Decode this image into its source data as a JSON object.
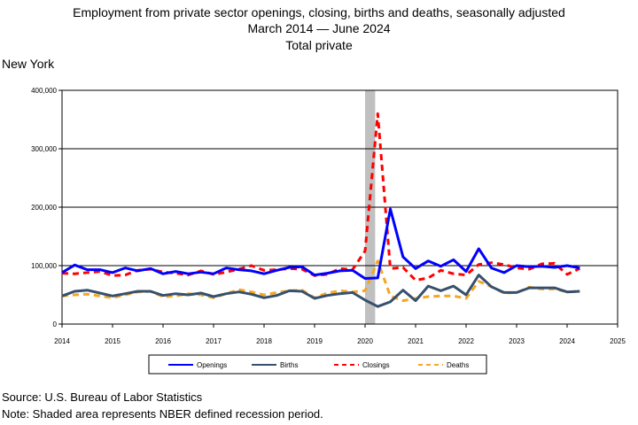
{
  "header": {
    "line1": "Employment from private sector openings, closing, births and deaths, seasonally adjusted",
    "line2": "March 2014 — June 2024",
    "line3": "Total private",
    "area": "New York"
  },
  "footer": {
    "source": "Source: U.S. Bureau of Labor Statistics",
    "note": "Note: Shaded area represents NBER defined recession period."
  },
  "colors": {
    "openings": "#0000ff",
    "births": "#36506e",
    "closings": "#ff0000",
    "deaths": "#f5a623",
    "recession": "#c0c0c0"
  },
  "chart_data": {
    "type": "line",
    "xlim": [
      2014,
      2025
    ],
    "ylim": [
      0,
      400000
    ],
    "x_ticks": [
      "2014",
      "2015",
      "2016",
      "2017",
      "2018",
      "2019",
      "2020",
      "2021",
      "2022",
      "2023",
      "2024",
      "2025"
    ],
    "y_ticks": [
      "0",
      "100,000",
      "200,000",
      "300,000",
      "400,000"
    ],
    "grid": "horizontal",
    "legend_position": "bottom",
    "recession": [
      2020.0,
      2020.2
    ],
    "x": [
      2014.0,
      2014.25,
      2014.5,
      2014.75,
      2015.0,
      2015.25,
      2015.5,
      2015.75,
      2016.0,
      2016.25,
      2016.5,
      2016.75,
      2017.0,
      2017.25,
      2017.5,
      2017.75,
      2018.0,
      2018.25,
      2018.5,
      2018.75,
      2019.0,
      2019.25,
      2019.5,
      2019.75,
      2020.0,
      2020.25,
      2020.5,
      2020.75,
      2021.0,
      2021.25,
      2021.5,
      2021.75,
      2022.0,
      2022.25,
      2022.5,
      2022.75,
      2023.0,
      2023.25,
      2023.5,
      2023.75,
      2024.0,
      2024.25
    ],
    "series": [
      {
        "name": "Openings",
        "style": "solid",
        "values": [
          88000,
          101000,
          93000,
          93000,
          88000,
          96000,
          91000,
          95000,
          86000,
          90000,
          86000,
          89000,
          86000,
          96000,
          93000,
          91000,
          86000,
          92000,
          97000,
          98000,
          84000,
          87000,
          91000,
          92000,
          78000,
          79000,
          197000,
          115000,
          95000,
          108000,
          99000,
          110000,
          90000,
          129000,
          96000,
          88000,
          100000,
          98000,
          99000,
          97000,
          100000,
          96000
        ]
      },
      {
        "name": "Births",
        "style": "solid",
        "values": [
          48000,
          56000,
          58000,
          53000,
          48000,
          52000,
          56000,
          56000,
          49000,
          52000,
          50000,
          53000,
          47000,
          52000,
          55000,
          51000,
          45000,
          49000,
          57000,
          56000,
          44000,
          49000,
          52000,
          54000,
          41000,
          30000,
          38000,
          58000,
          40000,
          65000,
          57000,
          65000,
          50000,
          84000,
          64000,
          54000,
          54000,
          62000,
          62000,
          62000,
          55000,
          56000
        ]
      },
      {
        "name": "Closings",
        "style": "dashed",
        "values": [
          87000,
          86000,
          88000,
          90000,
          83000,
          84000,
          92000,
          94000,
          89000,
          87000,
          84000,
          91000,
          85000,
          89000,
          94000,
          100000,
          92000,
          93000,
          95000,
          94000,
          83000,
          85000,
          95000,
          93000,
          125000,
          360000,
          95000,
          97000,
          75000,
          79000,
          92000,
          86000,
          84000,
          102000,
          105000,
          102000,
          96000,
          94000,
          103000,
          104000,
          85000,
          95000
        ]
      },
      {
        "name": "Deaths",
        "style": "dashed",
        "values": [
          48000,
          50000,
          51000,
          48000,
          45000,
          50000,
          55000,
          56000,
          47000,
          48000,
          52000,
          50000,
          45000,
          52000,
          59000,
          55000,
          50000,
          54000,
          57000,
          58000,
          45000,
          53000,
          57000,
          55000,
          57000,
          108000,
          48000,
          40000,
          44000,
          47000,
          48000,
          48000,
          44000,
          73000,
          64000,
          53000,
          54000,
          63000,
          60000,
          60000,
          55000,
          56000
        ]
      }
    ]
  }
}
